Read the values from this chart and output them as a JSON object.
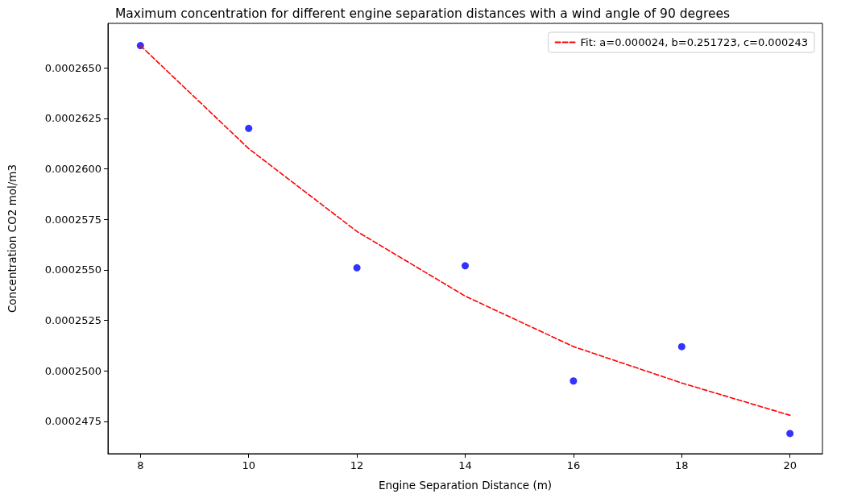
{
  "chart_data": {
    "type": "scatter",
    "title": "Maximum concentration for different engine separation distances with a wind angle of 90 degrees",
    "xlabel": "Engine Separation Distance (m)",
    "ylabel": "Concentration CO2 mol/m3",
    "x": [
      8,
      10,
      12,
      14,
      16,
      18,
      20
    ],
    "series": [
      {
        "color": "#0000ff",
        "marker": "circle",
        "values": [
          0.0002661,
          0.000262,
          0.0002551,
          0.0002552,
          0.0002495,
          0.0002512,
          0.0002469
        ]
      },
      {
        "type": "line",
        "name": "Fit: a=0.000024, b=0.251723, c=0.000243",
        "color": "#ff0000",
        "line_style": "dashed",
        "marker": "none",
        "values": [
          0.0002661,
          0.000261,
          0.0002569,
          0.0002537,
          0.0002512,
          0.0002494,
          0.0002478
        ]
      }
    ],
    "xlim": [
      7.4,
      20.6
    ],
    "xticks": [
      8,
      10,
      12,
      14,
      16,
      18,
      20
    ],
    "ylim": [
      0.0002459,
      0.0002672
    ],
    "yticks": [
      {
        "value": 0.0002475,
        "label": "0.0002475"
      },
      {
        "value": 0.00025,
        "label": "0.0002500"
      },
      {
        "value": 0.0002525,
        "label": "0.0002525"
      },
      {
        "value": 0.000255,
        "label": "0.0002550"
      },
      {
        "value": 0.0002575,
        "label": "0.0002575"
      },
      {
        "value": 0.00026,
        "label": "0.0002600"
      },
      {
        "value": 0.0002625,
        "label": "0.0002625"
      },
      {
        "value": 0.000265,
        "label": "0.0002650"
      }
    ],
    "grid": false,
    "legend": "top right"
  }
}
